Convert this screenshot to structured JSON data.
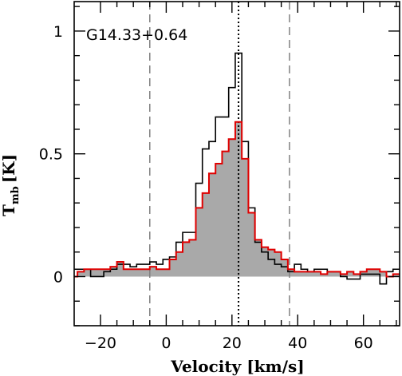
{
  "chart_data": {
    "type": "line",
    "title": "",
    "annotation": "G14.33+0.64",
    "xlabel": "Velocity [km/s]",
    "ylabel": "T",
    "ylabel_subscript": "mb",
    "ylabel_unit": "[K]",
    "xlim": [
      -28,
      71
    ],
    "ylim": [
      -0.2,
      1.12
    ],
    "xticks": [
      -20,
      0,
      20,
      40,
      60
    ],
    "xtick_labels": [
      "−20",
      "0",
      "20",
      "40",
      "60"
    ],
    "yticks": [
      0,
      0.5,
      1
    ],
    "ytick_labels": [
      "0",
      "0.5",
      "1"
    ],
    "grid": false,
    "legend": "none",
    "vlines": [
      {
        "x": -5,
        "style": "dashed",
        "color": "#808080"
      },
      {
        "x": 22,
        "style": "dotted",
        "color": "#000000"
      },
      {
        "x": 37.5,
        "style": "dashed",
        "color": "#808080"
      }
    ],
    "colors": {
      "black_series": "#000000",
      "red_series": "#e00000",
      "fill": "#a9a9a9"
    },
    "series": [
      {
        "color": "black",
        "step": true,
        "x": [
          -28,
          -26,
          -24,
          -22,
          -20,
          -18,
          -16,
          -14,
          -12,
          -10,
          -8,
          -6,
          -4,
          -2,
          0,
          2,
          4,
          6,
          8,
          10,
          12,
          14,
          16,
          18,
          20,
          22,
          24,
          26,
          28,
          30,
          32,
          34,
          36,
          38,
          40,
          42,
          44,
          46,
          48,
          50,
          52,
          54,
          56,
          58,
          60,
          62,
          64,
          66,
          68,
          70
        ],
        "y": [
          0.03,
          0.03,
          0.03,
          0.0,
          0.0,
          0.02,
          0.03,
          0.05,
          0.05,
          0.04,
          0.05,
          0.05,
          0.06,
          0.05,
          0.07,
          0.08,
          0.14,
          0.18,
          0.18,
          0.38,
          0.52,
          0.55,
          0.65,
          0.65,
          0.77,
          0.91,
          0.55,
          0.28,
          0.14,
          0.1,
          0.07,
          0.05,
          0.04,
          0.02,
          0.05,
          0.03,
          0.02,
          0.03,
          0.03,
          0.02,
          0.02,
          0.0,
          -0.01,
          -0.01,
          0.01,
          0.01,
          0.01,
          -0.03,
          0.02,
          0.03
        ]
      },
      {
        "color": "red",
        "step": true,
        "filled": true,
        "x": [
          -28,
          -26,
          -24,
          -22,
          -20,
          -18,
          -16,
          -14,
          -12,
          -10,
          -8,
          -6,
          -4,
          -2,
          0,
          2,
          4,
          6,
          8,
          10,
          12,
          14,
          16,
          18,
          20,
          22,
          24,
          26,
          28,
          30,
          32,
          34,
          36,
          38,
          40,
          42,
          44,
          46,
          48,
          50,
          52,
          54,
          56,
          58,
          60,
          62,
          64,
          66,
          68,
          70
        ],
        "y": [
          0.0,
          0.02,
          0.03,
          0.03,
          0.03,
          0.03,
          0.04,
          0.06,
          0.03,
          0.03,
          0.03,
          0.03,
          0.04,
          0.03,
          0.03,
          0.07,
          0.1,
          0.14,
          0.15,
          0.28,
          0.34,
          0.42,
          0.46,
          0.51,
          0.56,
          0.63,
          0.48,
          0.26,
          0.15,
          0.12,
          0.11,
          0.1,
          0.07,
          0.03,
          0.02,
          0.02,
          0.02,
          0.02,
          0.01,
          0.02,
          0.02,
          0.01,
          0.02,
          0.01,
          0.02,
          0.03,
          0.03,
          0.02,
          0.0,
          0.01
        ]
      }
    ]
  }
}
